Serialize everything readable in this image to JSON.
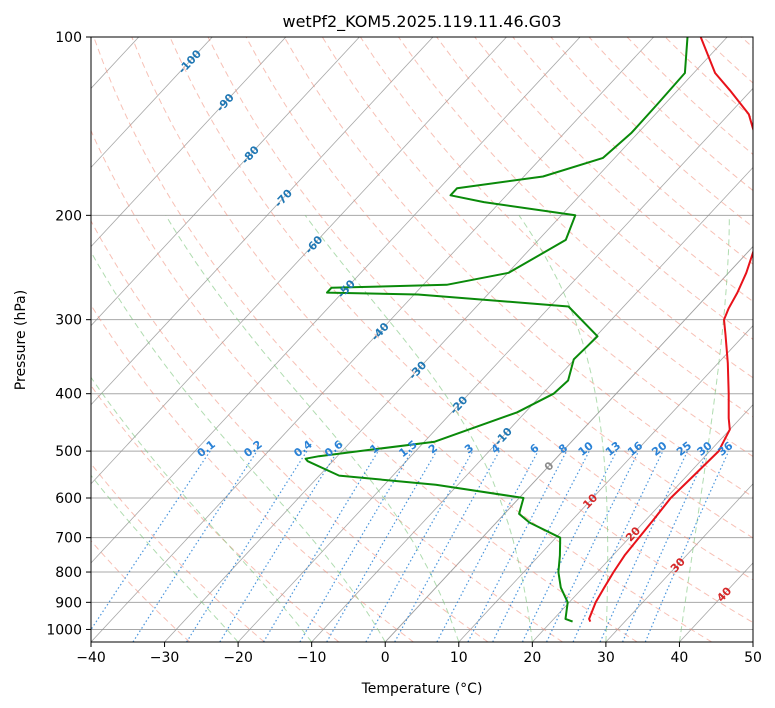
{
  "chart_data": {
    "type": "line",
    "title": "wetPf2_KOM5.2025.119.11.46.G03",
    "xlabel": "Temperature (°C)",
    "ylabel": "Pressure (hPa)",
    "xlim": [
      -40,
      50
    ],
    "ylim": [
      1050,
      100
    ],
    "y_scale": "log",
    "skew": "skew-T log-P",
    "grid": true,
    "x_ticks": [
      "−40",
      "−30",
      "−20",
      "−10",
      "0",
      "10",
      "20",
      "30",
      "40",
      "50"
    ],
    "y_ticks": [
      1000,
      900,
      800,
      700,
      600,
      500,
      400,
      300,
      200,
      100
    ],
    "colors": {
      "temperature": "#e8121a",
      "dewpoint": "#0a8a0a",
      "dry_adiabat": "#f08c78",
      "moist_adiabat": "#7cc47c",
      "mixing_ratio": "#2a82d6",
      "isotherm": "#8a8a8a",
      "grid": "#a8a8a8"
    },
    "series": [
      {
        "name": "temperature",
        "points": [
          [
            25.3,
            970
          ],
          [
            24.8,
            960
          ],
          [
            23.6,
            900
          ],
          [
            22.9,
            850
          ],
          [
            22.2,
            800
          ],
          [
            21.6,
            750
          ],
          [
            21.3,
            700
          ],
          [
            21.0,
            650
          ],
          [
            20.6,
            600
          ],
          [
            20.9,
            550
          ],
          [
            21.2,
            500
          ],
          [
            20.0,
            460
          ],
          [
            18.4,
            440
          ],
          [
            15.3,
            400
          ],
          [
            11.3,
            355
          ],
          [
            7.4,
            318
          ],
          [
            5.3,
            300
          ],
          [
            4.5,
            287
          ],
          [
            3.7,
            270
          ],
          [
            2.4,
            250
          ],
          [
            0.2,
            225
          ],
          [
            -1.9,
            210
          ],
          [
            -4.2,
            195
          ],
          [
            -8.4,
            170
          ],
          [
            -12.8,
            150
          ],
          [
            -17.3,
            135
          ],
          [
            -22.9,
            123
          ],
          [
            -27.1,
            115
          ],
          [
            -33.6,
            100
          ]
        ]
      },
      {
        "name": "dewpoint",
        "points": [
          [
            22.9,
            970
          ],
          [
            21.6,
            960
          ],
          [
            19.8,
            900
          ],
          [
            17.0,
            850
          ],
          [
            14.7,
            800
          ],
          [
            12.8,
            750
          ],
          [
            10.6,
            700
          ],
          [
            4.5,
            660
          ],
          [
            2.0,
            638
          ],
          [
            0.6,
            600
          ],
          [
            -13.0,
            570
          ],
          [
            -27.3,
            550
          ],
          [
            -33.4,
            520
          ],
          [
            -34.0,
            515
          ],
          [
            -32.5,
            510
          ],
          [
            -18.6,
            482
          ],
          [
            -11.1,
            430
          ],
          [
            -8.5,
            400
          ],
          [
            -8.2,
            380
          ],
          [
            -10.1,
            350
          ],
          [
            -9.8,
            320
          ],
          [
            -17.5,
            285
          ],
          [
            -39.5,
            272
          ],
          [
            -52.1,
            270
          ],
          [
            -52.1,
            265
          ],
          [
            -36.8,
            262
          ],
          [
            -29.9,
            250
          ],
          [
            -26.3,
            220
          ],
          [
            -28.1,
            200
          ],
          [
            -42.2,
            190
          ],
          [
            -47.6,
            185
          ],
          [
            -47.6,
            180
          ],
          [
            -37.4,
            172
          ],
          [
            -31.6,
            160
          ],
          [
            -30.9,
            145
          ],
          [
            -31.0,
            130
          ],
          [
            -31.2,
            115
          ],
          [
            -35.4,
            100
          ]
        ]
      }
    ],
    "annotations": {
      "isotherm_labels": [
        {
          "text": "-100",
          "t": -100,
          "p": 110
        },
        {
          "text": "-90",
          "t": -90,
          "p": 129
        },
        {
          "text": "-80",
          "t": -80,
          "p": 158
        },
        {
          "text": "-70",
          "t": -70,
          "p": 187
        },
        {
          "text": "-60",
          "t": -60,
          "p": 224
        },
        {
          "text": "-50",
          "t": -50,
          "p": 266
        },
        {
          "text": "-40",
          "t": -40,
          "p": 314
        },
        {
          "text": "-30",
          "t": -30,
          "p": 365
        },
        {
          "text": "-20",
          "t": -20,
          "p": 418
        },
        {
          "text": "-10",
          "t": -10,
          "p": 472
        },
        {
          "text": "0",
          "t": 0,
          "p": 530
        },
        {
          "text": "10",
          "t": 10,
          "p": 607
        },
        {
          "text": "20",
          "t": 20,
          "p": 690
        },
        {
          "text": "30",
          "t": 30,
          "p": 778
        },
        {
          "text": "40",
          "t": 40,
          "p": 872
        }
      ],
      "mixing_ratio_labels": [
        "0.1",
        "0.2",
        "0.4",
        "0.6",
        "1",
        "1.5",
        "2",
        "3",
        "4",
        "6",
        "8",
        "10",
        "13",
        "16",
        "20",
        "25",
        "30",
        "36"
      ]
    }
  }
}
